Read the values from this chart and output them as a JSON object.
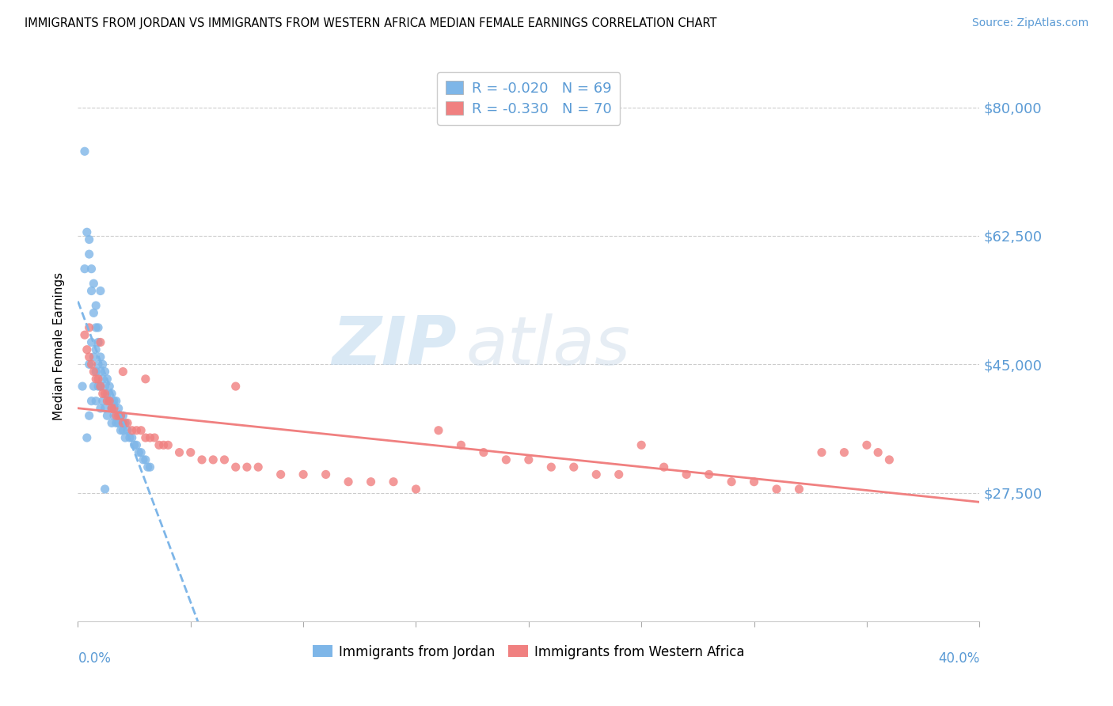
{
  "title": "IMMIGRANTS FROM JORDAN VS IMMIGRANTS FROM WESTERN AFRICA MEDIAN FEMALE EARNINGS CORRELATION CHART",
  "source": "Source: ZipAtlas.com",
  "ylabel": "Median Female Earnings",
  "xlim": [
    0.0,
    0.4
  ],
  "ylim": [
    10000,
    85000
  ],
  "jordan_color": "#7EB6E8",
  "western_africa_color": "#F08080",
  "jordan_R": -0.02,
  "jordan_N": 69,
  "western_africa_R": -0.33,
  "western_africa_N": 70,
  "legend_label_jordan": "R = -0.020   N = 69",
  "legend_label_wa": "R = -0.330   N = 70",
  "legend_labels_bottom_jordan": "Immigrants from Jordan",
  "legend_labels_bottom_wa": "Immigrants from Western Africa",
  "watermark_zip": "ZIP",
  "watermark_atlas": "atlas",
  "ytick_vals": [
    27500,
    45000,
    62500,
    80000
  ],
  "ytick_labels": [
    "$27,500",
    "$45,000",
    "$62,500",
    "$80,000"
  ],
  "jordan_x": [
    0.002,
    0.003,
    0.004,
    0.005,
    0.005,
    0.005,
    0.006,
    0.006,
    0.006,
    0.007,
    0.007,
    0.007,
    0.008,
    0.008,
    0.008,
    0.008,
    0.009,
    0.009,
    0.009,
    0.01,
    0.01,
    0.01,
    0.01,
    0.011,
    0.011,
    0.011,
    0.012,
    0.012,
    0.012,
    0.013,
    0.013,
    0.013,
    0.014,
    0.014,
    0.015,
    0.015,
    0.015,
    0.016,
    0.016,
    0.017,
    0.017,
    0.018,
    0.018,
    0.019,
    0.019,
    0.02,
    0.02,
    0.021,
    0.021,
    0.022,
    0.023,
    0.024,
    0.025,
    0.026,
    0.027,
    0.028,
    0.029,
    0.03,
    0.031,
    0.032,
    0.003,
    0.004,
    0.005,
    0.006,
    0.007,
    0.008,
    0.009,
    0.01,
    0.012
  ],
  "jordan_y": [
    42000,
    58000,
    35000,
    60000,
    45000,
    38000,
    55000,
    48000,
    40000,
    52000,
    46000,
    42000,
    50000,
    47000,
    44000,
    40000,
    48000,
    45000,
    42000,
    46000,
    44000,
    42000,
    39000,
    45000,
    43000,
    40000,
    44000,
    42000,
    39000,
    43000,
    41000,
    38000,
    42000,
    40000,
    41000,
    39000,
    37000,
    40000,
    38000,
    40000,
    37000,
    39000,
    37000,
    38000,
    36000,
    38000,
    36000,
    37000,
    35000,
    36000,
    35000,
    35000,
    34000,
    34000,
    33000,
    33000,
    32000,
    32000,
    31000,
    31000,
    74000,
    63000,
    62000,
    58000,
    56000,
    53000,
    50000,
    55000,
    28000
  ],
  "wa_x": [
    0.003,
    0.004,
    0.005,
    0.006,
    0.007,
    0.008,
    0.009,
    0.01,
    0.011,
    0.012,
    0.013,
    0.014,
    0.015,
    0.016,
    0.017,
    0.018,
    0.019,
    0.02,
    0.022,
    0.024,
    0.026,
    0.028,
    0.03,
    0.032,
    0.034,
    0.036,
    0.038,
    0.04,
    0.045,
    0.05,
    0.055,
    0.06,
    0.065,
    0.07,
    0.075,
    0.08,
    0.09,
    0.1,
    0.11,
    0.12,
    0.13,
    0.14,
    0.15,
    0.16,
    0.17,
    0.18,
    0.19,
    0.2,
    0.21,
    0.22,
    0.23,
    0.24,
    0.25,
    0.26,
    0.27,
    0.28,
    0.29,
    0.3,
    0.31,
    0.32,
    0.33,
    0.34,
    0.35,
    0.355,
    0.36,
    0.005,
    0.01,
    0.02,
    0.03,
    0.07
  ],
  "wa_y": [
    49000,
    47000,
    46000,
    45000,
    44000,
    43000,
    43000,
    42000,
    41000,
    41000,
    40000,
    40000,
    39000,
    39000,
    38000,
    38000,
    38000,
    37000,
    37000,
    36000,
    36000,
    36000,
    35000,
    35000,
    35000,
    34000,
    34000,
    34000,
    33000,
    33000,
    32000,
    32000,
    32000,
    31000,
    31000,
    31000,
    30000,
    30000,
    30000,
    29000,
    29000,
    29000,
    28000,
    36000,
    34000,
    33000,
    32000,
    32000,
    31000,
    31000,
    30000,
    30000,
    34000,
    31000,
    30000,
    30000,
    29000,
    29000,
    28000,
    28000,
    33000,
    33000,
    34000,
    33000,
    32000,
    50000,
    48000,
    44000,
    43000,
    42000
  ]
}
